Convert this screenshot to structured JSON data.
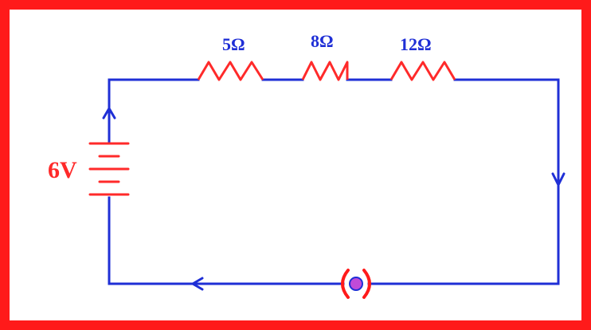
{
  "diagram": {
    "battery_label": "6V",
    "resistor_labels": [
      "5Ω",
      "8Ω",
      "12Ω"
    ],
    "colors": {
      "border": "#ff1a1a",
      "wire": "#1f2fd6",
      "resistor": "#ff2a2a",
      "label": "#1f2fd6",
      "battery": "#ff2a2a",
      "battery_label": "#ff2a2a",
      "switch_bracket": "#ff1a1a",
      "switch_dot": "#c04bd8"
    },
    "icons": {
      "battery": "battery-symbol",
      "resistor": "resistor-symbol",
      "switch": "switch-symbol",
      "current_arrow": "arrow-icon"
    }
  }
}
